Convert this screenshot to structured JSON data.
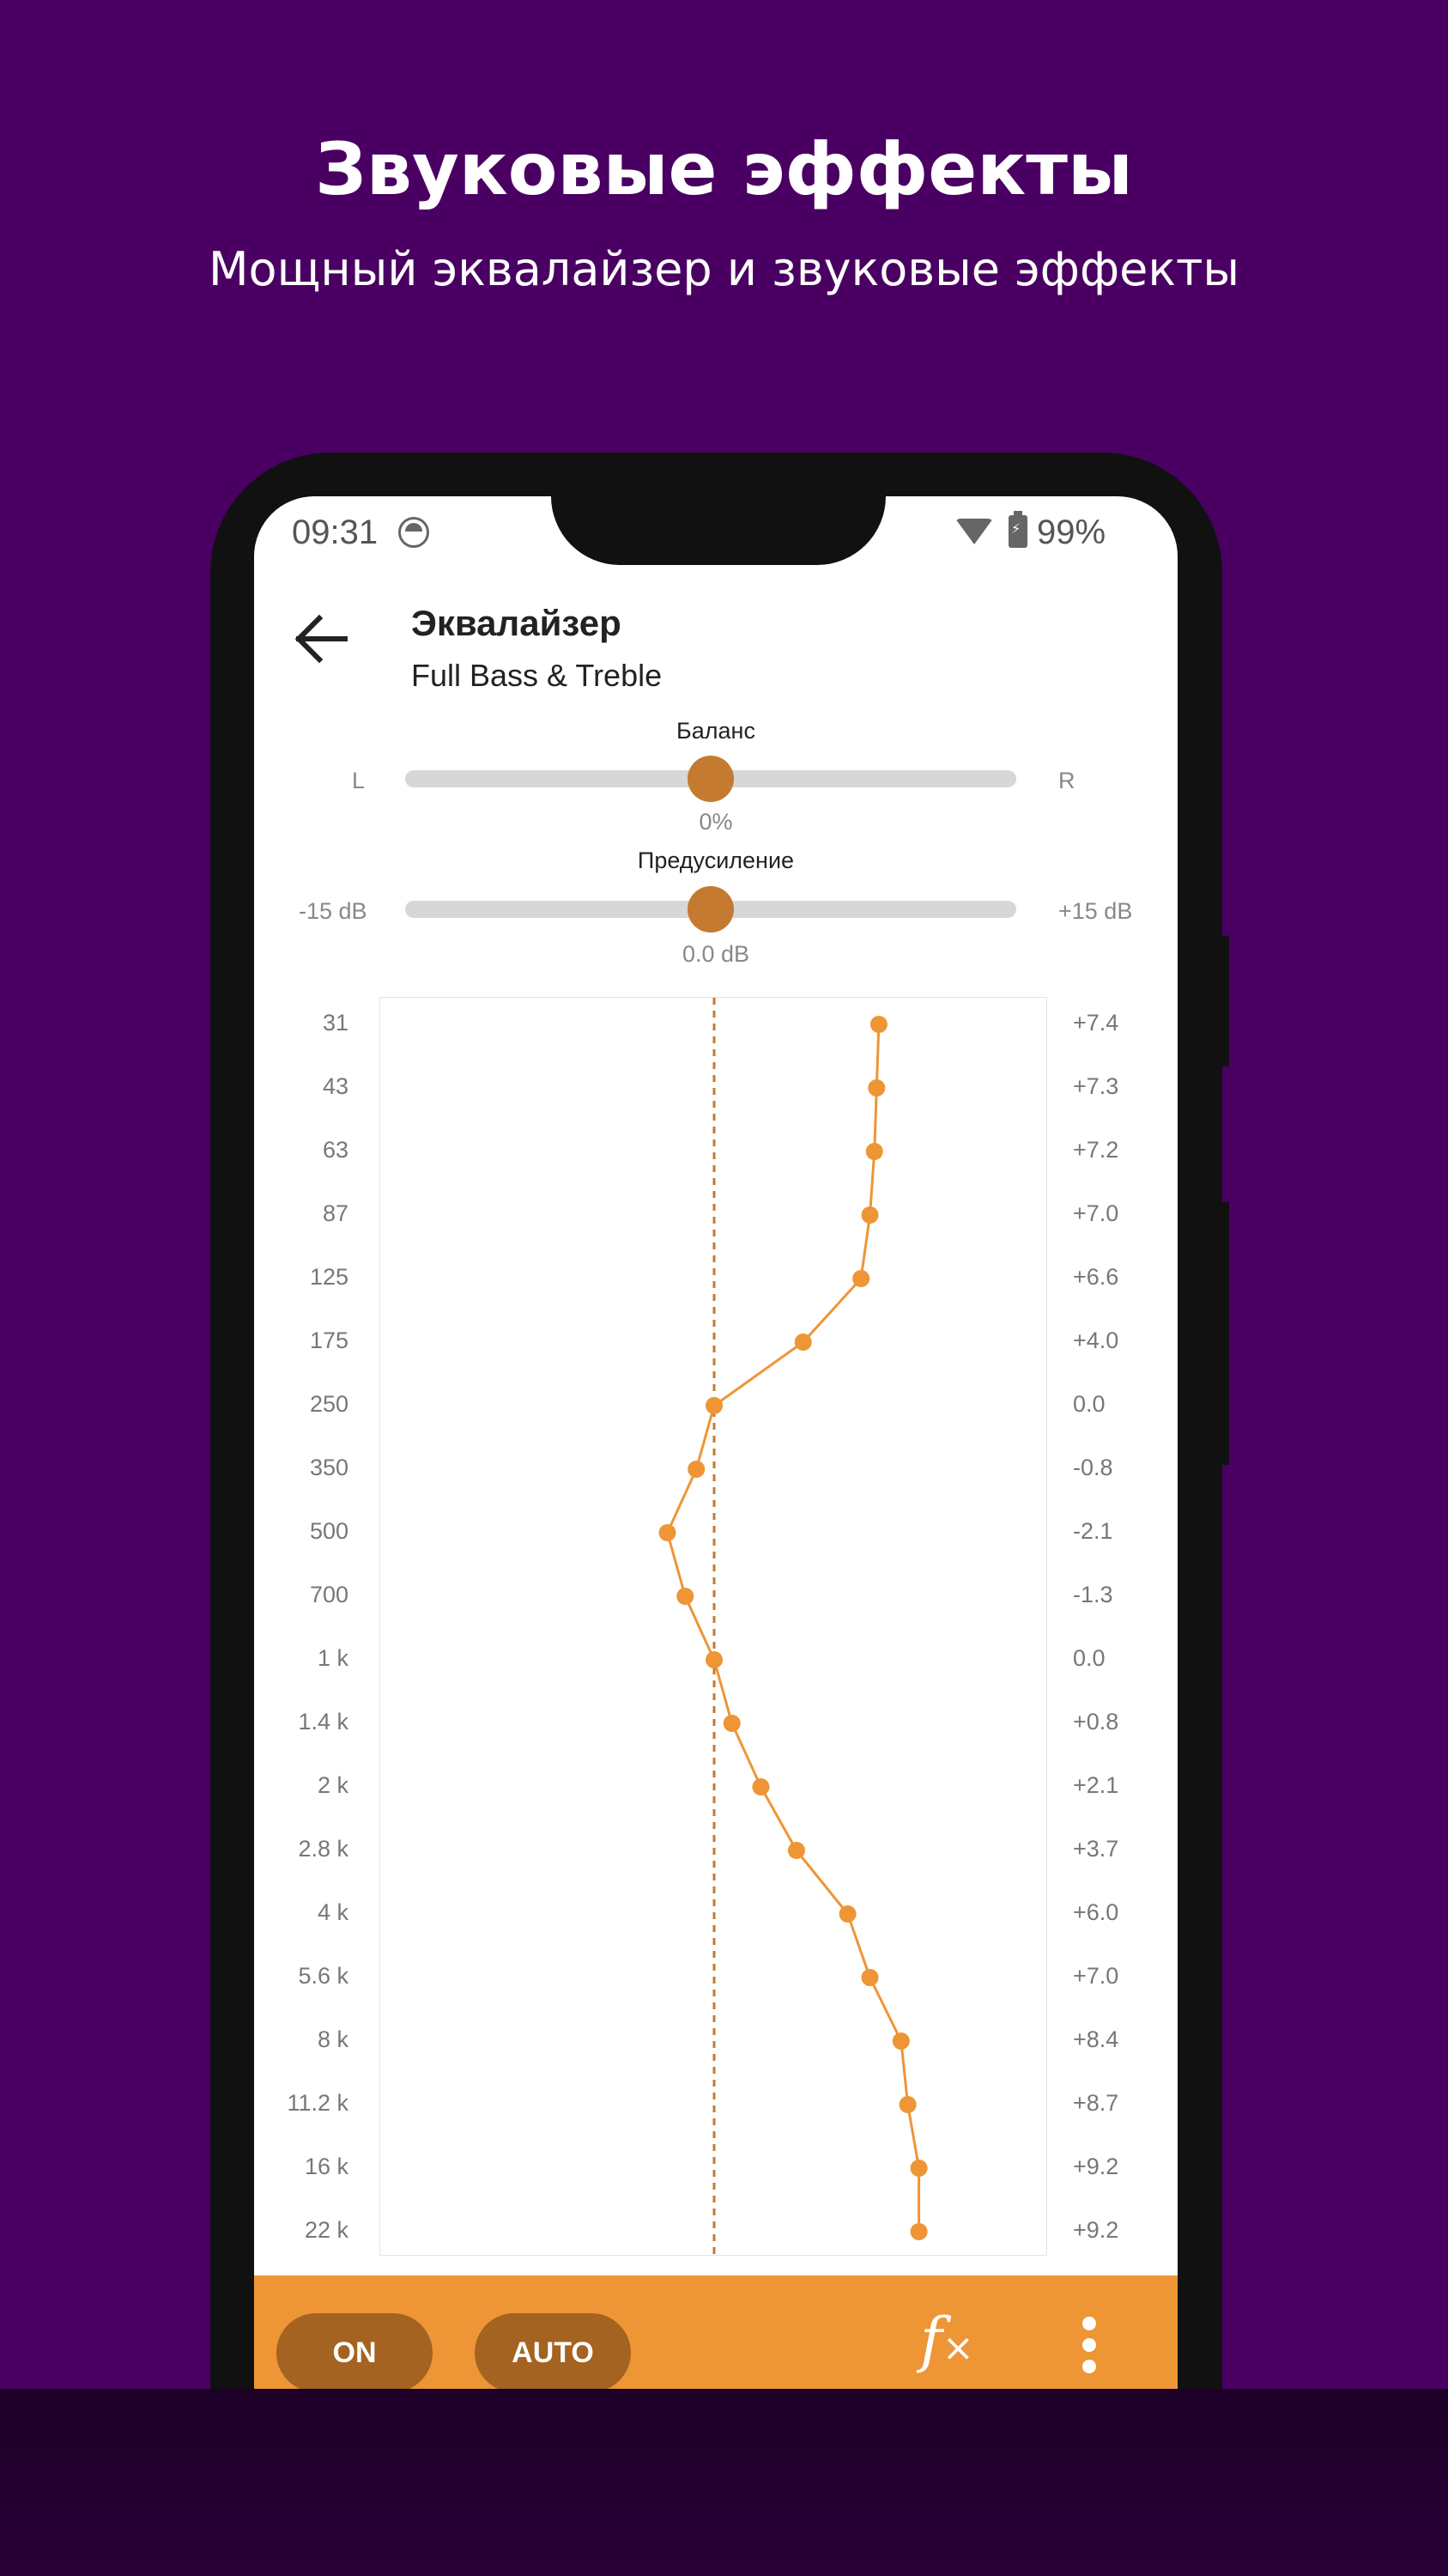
{
  "promo": {
    "title": "Звуковые эффекты",
    "subtitle": "Мощный эквалайзер и звуковые эффекты"
  },
  "status_bar": {
    "time": "09:31",
    "battery": "99%"
  },
  "header": {
    "title": "Эквалайзер",
    "preset": "Full Bass & Treble"
  },
  "balance": {
    "label": "Баланс",
    "left": "L",
    "right": "R",
    "value": "0%",
    "position": 0.5
  },
  "preamp": {
    "label": "Предусиление",
    "min": "-15 dB",
    "max": "+15 dB",
    "value": "0.0 dB",
    "position": 0.5
  },
  "chart_data": {
    "type": "line",
    "x_range": [
      -15,
      15
    ],
    "bands": [
      "31",
      "43",
      "63",
      "87",
      "125",
      "175",
      "250",
      "350",
      "500",
      "700",
      "1 k",
      "1.4 k",
      "2 k",
      "2.8 k",
      "4 k",
      "5.6 k",
      "8 k",
      "11.2 k",
      "16 k",
      "22 k"
    ],
    "gain_labels": [
      "+7.4",
      "+7.3",
      "+7.2",
      "+7.0",
      "+6.6",
      "+4.0",
      "0.0",
      "-0.8",
      "-2.1",
      "-1.3",
      "0.0",
      "+0.8",
      "+2.1",
      "+3.7",
      "+6.0",
      "+7.0",
      "+8.4",
      "+8.7",
      "+9.2",
      "+9.2"
    ],
    "gains": [
      7.4,
      7.3,
      7.2,
      7.0,
      6.6,
      4.0,
      0.0,
      -0.8,
      -2.1,
      -1.3,
      0.0,
      0.8,
      2.1,
      3.7,
      6.0,
      7.0,
      8.4,
      8.7,
      9.2,
      9.2
    ],
    "line_color": "#ee9536"
  },
  "bottom_bar": {
    "on_label": "ON",
    "auto_label": "AUTO"
  },
  "colors": {
    "background": "#4a0062",
    "accent": "#ee9536",
    "thumb": "#c47a30",
    "button": "#a46320"
  }
}
